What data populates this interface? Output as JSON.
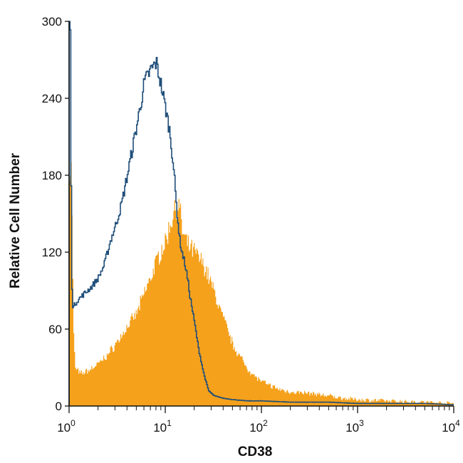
{
  "chart_data": {
    "type": "area",
    "title": "",
    "xlabel": "CD38",
    "ylabel": "Relative Cell Number",
    "x_scale": "log",
    "xlim": [
      1,
      10000
    ],
    "ylim": [
      0,
      300
    ],
    "grid": false,
    "legend": "none",
    "x_ticks": [
      {
        "value": 1,
        "base": "10",
        "exp": "0"
      },
      {
        "value": 10,
        "base": "10",
        "exp": "1"
      },
      {
        "value": 100,
        "base": "10",
        "exp": "2"
      },
      {
        "value": 1000,
        "base": "10",
        "exp": "3"
      },
      {
        "value": 10000,
        "base": "10",
        "exp": "4"
      }
    ],
    "y_ticks": [
      {
        "value": 0,
        "label": "0"
      },
      {
        "value": 60,
        "label": "60"
      },
      {
        "value": 120,
        "label": "120"
      },
      {
        "value": 180,
        "label": "180"
      },
      {
        "value": 240,
        "label": "240"
      },
      {
        "value": 300,
        "label": "300"
      }
    ],
    "series": [
      {
        "style": "filled",
        "color": "#F5A11C",
        "x": [
          1.0,
          1.05,
          1.1,
          1.15,
          1.3,
          1.6,
          2.0,
          2.5,
          3.0,
          3.5,
          4.0,
          5.0,
          6.0,
          7.0,
          8.0,
          9.0,
          10.0,
          11.0,
          12.0,
          13.0,
          14.0,
          15.0,
          17.0,
          20.0,
          25.0,
          30.0,
          35.0,
          40.0,
          50.0,
          60.0,
          70.0,
          80.0,
          100.0,
          150.0,
          200.0,
          300.0,
          500.0,
          700.0,
          1000.0,
          2000.0,
          5000.0,
          10000.0
        ],
        "y": [
          185,
          185,
          60,
          30,
          25,
          28,
          33,
          40,
          48,
          55,
          62,
          72,
          88,
          100,
          112,
          122,
          128,
          140,
          150,
          157,
          155,
          135,
          125,
          120,
          110,
          95,
          80,
          68,
          48,
          38,
          30,
          25,
          19,
          13,
          11,
          10,
          8,
          6,
          5,
          4,
          3,
          2
        ]
      },
      {
        "style": "outline",
        "color": "#1F4E79",
        "x": [
          1.0,
          1.02,
          1.05,
          1.07,
          1.1,
          1.2,
          1.4,
          1.7,
          2.0,
          2.3,
          2.7,
          3.0,
          3.5,
          4.0,
          4.5,
          5.0,
          5.5,
          6.0,
          7.0,
          7.5,
          8.0,
          9.0,
          10.0,
          11.0,
          12.0,
          13.0,
          14.0,
          15.0,
          16.0,
          17.0,
          18.0,
          20.0,
          22.0,
          25.0,
          28.0,
          32.0,
          40.0,
          50.0,
          70.0,
          100.0,
          200.0,
          500.0,
          1000.0,
          2000.0,
          5000.0,
          10000.0
        ],
        "y": [
          300,
          300,
          120,
          80,
          77,
          82,
          87,
          93,
          100,
          110,
          130,
          140,
          158,
          180,
          200,
          218,
          235,
          252,
          262,
          265,
          268,
          250,
          232,
          215,
          190,
          155,
          130,
          118,
          110,
          98,
          85,
          65,
          45,
          25,
          12,
          8,
          6,
          5,
          4,
          4,
          3,
          3,
          2,
          2,
          2,
          1
        ]
      }
    ]
  }
}
